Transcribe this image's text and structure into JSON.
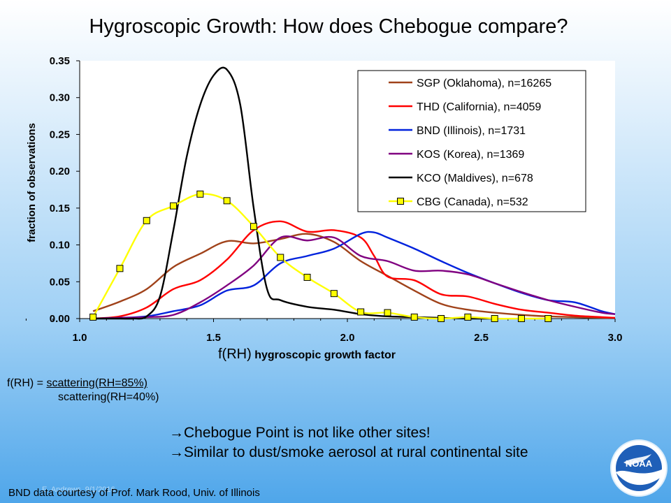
{
  "title": "Hygroscopic Growth: How does Chebogue compare?",
  "chart_data": {
    "type": "line",
    "xlabel_main": "f(RH)",
    "xlabel_sub": "hygroscopic growth factor",
    "ylabel": "fraction of observations",
    "xlim": [
      1.0,
      3.0
    ],
    "ylim": [
      0,
      0.35
    ],
    "x_ticks": [
      "1.0",
      "1.5",
      "2.0",
      "2.5",
      "3.0"
    ],
    "y_ticks": [
      "0.00",
      "0.05",
      "0.10",
      "0.15",
      "0.20",
      "0.25",
      "0.30",
      "0.35"
    ],
    "legend_position": "top-right",
    "grid": false,
    "series": [
      {
        "name": "SGP (Oklahoma), n=16265",
        "color": "#a0421a",
        "marker": "none",
        "x": [
          1.05,
          1.15,
          1.25,
          1.35,
          1.45,
          1.55,
          1.65,
          1.75,
          1.85,
          1.95,
          2.05,
          2.15,
          2.25,
          2.35,
          2.45,
          2.55,
          2.65,
          2.75,
          2.85,
          2.95,
          3.0
        ],
        "y": [
          0.01,
          0.023,
          0.04,
          0.07,
          0.088,
          0.105,
          0.102,
          0.108,
          0.115,
          0.104,
          0.078,
          0.058,
          0.038,
          0.02,
          0.012,
          0.008,
          0.005,
          0.003,
          0.002,
          0.001,
          0.001
        ]
      },
      {
        "name": "THD (California), n=4059",
        "color": "#ff0000",
        "marker": "none",
        "x": [
          1.05,
          1.15,
          1.25,
          1.35,
          1.45,
          1.55,
          1.65,
          1.75,
          1.85,
          1.95,
          2.05,
          2.1,
          2.15,
          2.25,
          2.35,
          2.45,
          2.55,
          2.65,
          2.75,
          2.85,
          2.95,
          3.0
        ],
        "y": [
          0.0,
          0.003,
          0.015,
          0.04,
          0.052,
          0.08,
          0.12,
          0.132,
          0.118,
          0.12,
          0.11,
          0.085,
          0.057,
          0.052,
          0.033,
          0.03,
          0.02,
          0.012,
          0.008,
          0.004,
          0.002,
          0.001
        ]
      },
      {
        "name": "BND (Illinois), n=1731",
        "color": "#0022dd",
        "marker": "none",
        "x": [
          1.05,
          1.15,
          1.25,
          1.35,
          1.45,
          1.55,
          1.65,
          1.75,
          1.85,
          1.95,
          2.05,
          2.1,
          2.15,
          2.25,
          2.35,
          2.45,
          2.55,
          2.65,
          2.75,
          2.85,
          2.95,
          3.0
        ],
        "y": [
          0.0,
          0.001,
          0.003,
          0.01,
          0.018,
          0.038,
          0.045,
          0.075,
          0.085,
          0.095,
          0.115,
          0.117,
          0.11,
          0.095,
          0.078,
          0.062,
          0.048,
          0.035,
          0.025,
          0.022,
          0.01,
          0.006
        ]
      },
      {
        "name": "KOS (Korea), n=1369",
        "color": "#800080",
        "marker": "none",
        "x": [
          1.05,
          1.15,
          1.25,
          1.35,
          1.45,
          1.55,
          1.65,
          1.75,
          1.85,
          1.95,
          2.05,
          2.15,
          2.25,
          2.35,
          2.45,
          2.55,
          2.65,
          2.75,
          2.85,
          2.95,
          3.0
        ],
        "y": [
          0.0,
          0.001,
          0.002,
          0.005,
          0.022,
          0.045,
          0.072,
          0.11,
          0.106,
          0.11,
          0.085,
          0.078,
          0.065,
          0.065,
          0.06,
          0.048,
          0.036,
          0.025,
          0.016,
          0.008,
          0.006
        ]
      },
      {
        "name": "KCO (Maldives), n=678",
        "color": "#000000",
        "marker": "none",
        "x": [
          1.05,
          1.15,
          1.2,
          1.25,
          1.3,
          1.35,
          1.4,
          1.45,
          1.5,
          1.55,
          1.6,
          1.65,
          1.7,
          1.75,
          1.85,
          1.95,
          2.05,
          2.15,
          2.25,
          2.35,
          2.45,
          2.55
        ],
        "y": [
          0.0,
          0.0,
          0.0,
          0.003,
          0.03,
          0.12,
          0.22,
          0.29,
          0.33,
          0.338,
          0.29,
          0.15,
          0.04,
          0.025,
          0.016,
          0.012,
          0.006,
          0.003,
          0.002,
          0.001,
          0.0,
          0.0
        ]
      },
      {
        "name": "CBG (Canada), n=532",
        "color": "#ffff00",
        "marker": "square",
        "x": [
          1.05,
          1.15,
          1.25,
          1.35,
          1.45,
          1.55,
          1.65,
          1.75,
          1.85,
          1.95,
          2.05,
          2.15,
          2.25,
          2.35,
          2.45,
          2.55,
          2.65,
          2.75
        ],
        "y": [
          0.002,
          0.068,
          0.133,
          0.153,
          0.169,
          0.16,
          0.125,
          0.083,
          0.056,
          0.034,
          0.009,
          0.008,
          0.002,
          0.0,
          0.002,
          0.0,
          0.0,
          0.0
        ]
      }
    ]
  },
  "formula": {
    "lhs": "f(RH) = ",
    "numerator": "scattering(RH=85%)",
    "denominator": "scattering(RH=40%)"
  },
  "notes": [
    "→Chebogue Point is not like other sites!",
    "→Similar to dust/smoke aerosol at rural continental site"
  ],
  "credit": "BND data courtesy of Prof. Mark Rood, Univ. of Illinois",
  "footer_date": "E. Andrews, 9/1/2016",
  "logo_text": "NOAA"
}
